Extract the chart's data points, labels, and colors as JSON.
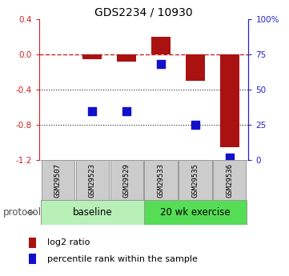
{
  "title": "GDS2234 / 10930",
  "samples": [
    "GSM29507",
    "GSM29523",
    "GSM29529",
    "GSM29533",
    "GSM29535",
    "GSM29536"
  ],
  "log2_ratio": [
    0.0,
    -0.05,
    -0.08,
    0.2,
    -0.3,
    -1.05
  ],
  "percentile_rank": [
    null,
    35,
    35,
    68,
    25,
    2
  ],
  "ylim": [
    -1.2,
    0.4
  ],
  "yticks_left": [
    0.4,
    0.0,
    -0.4,
    -0.8,
    -1.2
  ],
  "yticks_right_vals": [
    0.4,
    0.0,
    -0.4,
    -0.8,
    -1.2
  ],
  "yticks_right_labels": [
    "100%",
    "75",
    "50",
    "25",
    "0"
  ],
  "groups": [
    {
      "label": "baseline",
      "indices": [
        0,
        1,
        2
      ],
      "color": "#b8f0b8"
    },
    {
      "label": "20 wk exercise",
      "indices": [
        3,
        4,
        5
      ],
      "color": "#55dd55"
    }
  ],
  "bar_color": "#aa1111",
  "point_color": "#1111cc",
  "bar_width": 0.55,
  "point_size": 55,
  "hline_color": "#cc2222",
  "hline_style": "--",
  "grid_color": "#222222",
  "grid_style": ":",
  "bg_color": "#ffffff",
  "legend_bar_label": "log2 ratio",
  "legend_point_label": "percentile rank within the sample",
  "protocol_label": "protocol",
  "left_axis_color": "#cc2222",
  "right_axis_color": "#2222cc",
  "title_fontsize": 10,
  "tick_fontsize": 7.5,
  "legend_fontsize": 8,
  "group_fontsize": 8.5,
  "protocol_fontsize": 8.5,
  "sample_fontsize": 6.5
}
